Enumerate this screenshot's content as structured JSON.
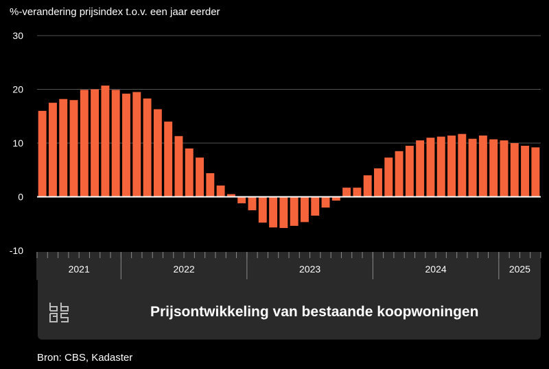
{
  "colors": {
    "bar": "#f6643c",
    "grid": "#555555",
    "zero_line": "#ffffff",
    "panel": "#2a2a2a",
    "background": "#000000"
  },
  "title": "Prijsontwikkeling van bestaande koopwoningen",
  "source": "Bron: CBS, Kadaster",
  "logo_icon": "cbs-logo-icon",
  "chart_data": {
    "type": "bar",
    "title": "Prijsontwikkeling van bestaande koopwoningen",
    "ylabel": "%-verandering prijsindex t.o.v. een jaar eerder",
    "xlabel": "",
    "ylim": [
      -10,
      30
    ],
    "yticks": [
      30,
      20,
      10,
      0,
      -10
    ],
    "grid": true,
    "years": [
      {
        "label": "2021",
        "months": 8
      },
      {
        "label": "2022",
        "months": 12
      },
      {
        "label": "2023",
        "months": 12
      },
      {
        "label": "2024",
        "months": 12
      },
      {
        "label": "2025",
        "months": 4
      }
    ],
    "categories": [
      "2021-05",
      "2021-06",
      "2021-07",
      "2021-08",
      "2021-09",
      "2021-10",
      "2021-11",
      "2021-12",
      "2022-01",
      "2022-02",
      "2022-03",
      "2022-04",
      "2022-05",
      "2022-06",
      "2022-07",
      "2022-08",
      "2022-09",
      "2022-10",
      "2022-11",
      "2022-12",
      "2023-01",
      "2023-02",
      "2023-03",
      "2023-04",
      "2023-05",
      "2023-06",
      "2023-07",
      "2023-08",
      "2023-09",
      "2023-10",
      "2023-11",
      "2023-12",
      "2024-01",
      "2024-02",
      "2024-03",
      "2024-04",
      "2024-05",
      "2024-06",
      "2024-07",
      "2024-08",
      "2024-09",
      "2024-10",
      "2024-11",
      "2024-12",
      "2025-01",
      "2025-02",
      "2025-03",
      "2025-04"
    ],
    "values": [
      16.0,
      17.5,
      18.2,
      18.0,
      19.9,
      20.0,
      20.7,
      19.9,
      19.2,
      19.5,
      18.3,
      16.3,
      14.0,
      11.3,
      9.0,
      7.3,
      4.4,
      2.1,
      0.5,
      -1.2,
      -2.5,
      -4.8,
      -5.7,
      -5.8,
      -5.4,
      -4.7,
      -3.5,
      -2.0,
      -0.7,
      1.7,
      1.7,
      4.0,
      5.3,
      7.3,
      8.5,
      9.5,
      10.5,
      11.0,
      11.2,
      11.4,
      11.7,
      10.8,
      11.4,
      10.7,
      10.5,
      10.0,
      9.5,
      9.2
    ]
  }
}
